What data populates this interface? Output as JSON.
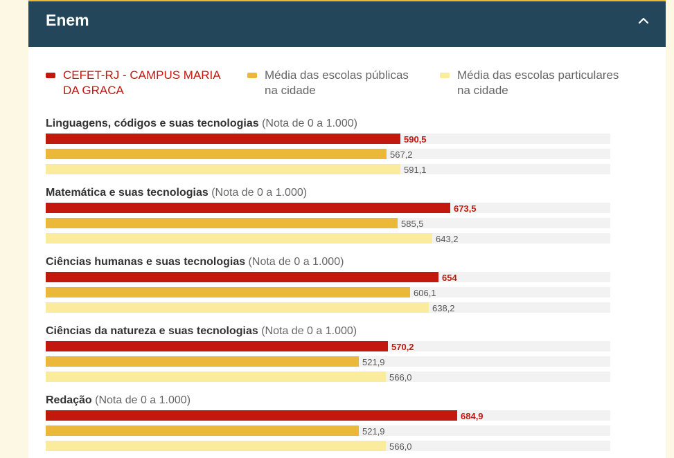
{
  "header": {
    "title": "Enem"
  },
  "colors": {
    "school": "#c3180e",
    "public": "#ecb83a",
    "private": "#faec9c"
  },
  "legend": [
    {
      "label": "CEFET-RJ - CAMPUS MARIA\nDA GRACA",
      "color": "#c3180e",
      "text_color": "#c0180f"
    },
    {
      "label": "Média das escolas públicas\nna cidade",
      "color": "#ecb83a",
      "text_color": "#666666"
    },
    {
      "label": "Média das escolas particulares\nna cidade",
      "color": "#faec9c",
      "text_color": "#666666"
    }
  ],
  "chart_data": {
    "type": "bar",
    "orientation": "horizontal",
    "xlim": [
      0,
      1000
    ],
    "series": [
      {
        "name": "CEFET-RJ - CAMPUS MARIA DA GRACA",
        "color": "#c3180e"
      },
      {
        "name": "Média das escolas públicas na cidade",
        "color": "#ecb83a"
      },
      {
        "name": "Média das escolas particulares na cidade",
        "color": "#faec9c"
      }
    ],
    "groups": [
      {
        "name": "Linguagens, códigos e suas tecnologias",
        "note": "(Nota de 0 a 1.000)",
        "values": [
          590.5,
          567.2,
          591.1
        ],
        "labels": [
          "590,5",
          "567,2",
          "591,1"
        ]
      },
      {
        "name": "Matemática e suas tecnologias",
        "note": "(Nota de 0 a 1.000)",
        "values": [
          673.5,
          585.5,
          643.2
        ],
        "labels": [
          "673,5",
          "585,5",
          "643,2"
        ]
      },
      {
        "name": "Ciências humanas e suas tecnologias",
        "note": "(Nota de 0 a 1.000)",
        "values": [
          654,
          606.1,
          638.2
        ],
        "labels": [
          "654",
          "606,1",
          "638,2"
        ]
      },
      {
        "name": "Ciências da natureza e suas tecnologias",
        "note": "(Nota de 0 a 1.000)",
        "values": [
          570.2,
          521.9,
          566.0
        ],
        "labels": [
          "570,2",
          "521,9",
          "566,0"
        ]
      },
      {
        "name": "Redação",
        "note": "(Nota de 0 a 1.000)",
        "values": [
          684.9,
          521.9,
          566.0
        ],
        "labels": [
          "684,9",
          "521,9",
          "566,0"
        ]
      }
    ]
  }
}
